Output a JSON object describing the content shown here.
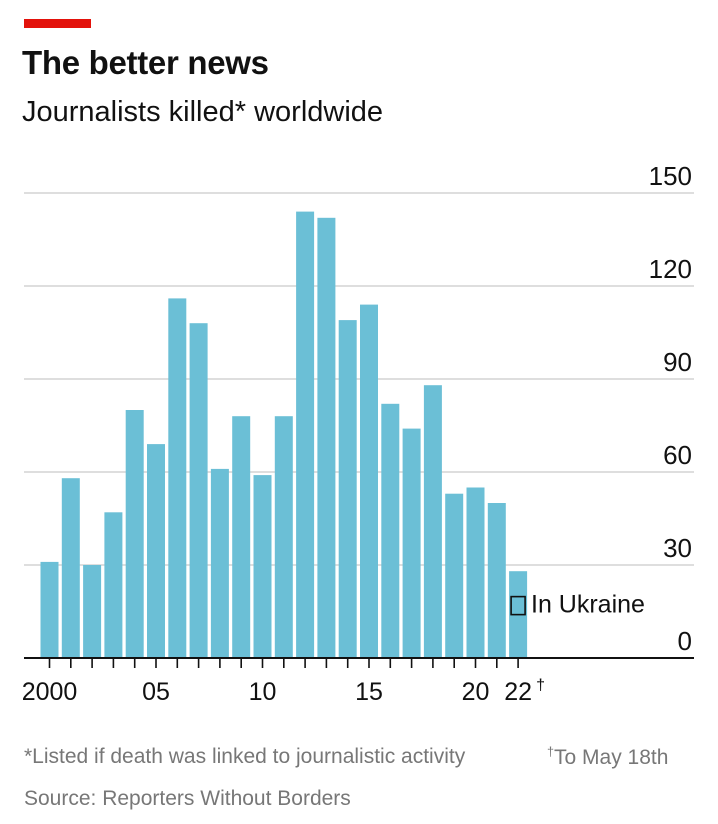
{
  "accent_color": "#e3120b",
  "header": {
    "title": "The better news",
    "subtitle": "Journalists killed* worldwide"
  },
  "legend": {
    "label": "In Ukraine",
    "swatch": "outlined box"
  },
  "footnotes": {
    "note": "*Listed if death was linked to journalistic activity",
    "note_right_mark": "†",
    "note_right": "To May 18th",
    "source": "Source: Reporters Without Borders"
  },
  "chart_data": {
    "type": "bar",
    "bar_color": "#6bbfd6",
    "grid": true,
    "ylim": [
      0,
      150
    ],
    "y_ticks": [
      0,
      30,
      60,
      90,
      120,
      150
    ],
    "y_axis_side": "right",
    "x": [
      2000,
      2001,
      2002,
      2003,
      2004,
      2005,
      2006,
      2007,
      2008,
      2009,
      2010,
      2011,
      2012,
      2013,
      2014,
      2015,
      2016,
      2017,
      2018,
      2019,
      2020,
      2021,
      2022
    ],
    "x_tick_labels": [
      {
        "year": 2000,
        "label": "2000"
      },
      {
        "year": 2005,
        "label": "05"
      },
      {
        "year": 2010,
        "label": "10"
      },
      {
        "year": 2015,
        "label": "15"
      },
      {
        "year": 2020,
        "label": "20"
      },
      {
        "year": 2022,
        "label": "22",
        "mark": "†"
      }
    ],
    "values": [
      31,
      58,
      30,
      47,
      80,
      69,
      116,
      108,
      61,
      78,
      59,
      78,
      144,
      142,
      109,
      114,
      82,
      74,
      88,
      53,
      55,
      50,
      28
    ],
    "ukraine": {
      "year": 2022,
      "value": 6
    }
  }
}
